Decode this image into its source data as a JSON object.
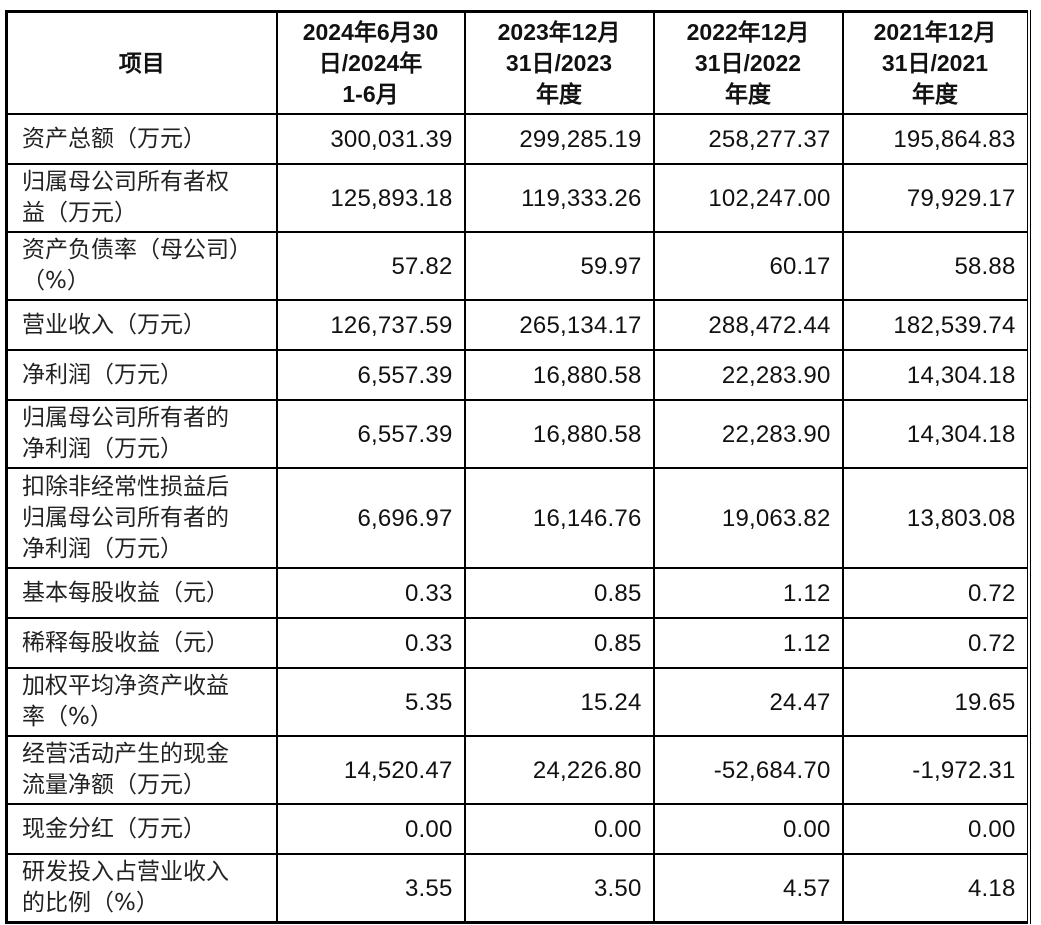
{
  "table": {
    "headers": [
      "项目",
      "2024年6月30日/2024年1-6月",
      "2023年12月31日/2023年度",
      "2022年12月31日/2022年度",
      "2021年12月31日/2021年度"
    ],
    "header_lines": [
      [
        "项目"
      ],
      [
        "2024年6月30",
        "日/2024年",
        "1-6月"
      ],
      [
        "2023年12月",
        "31日/2023",
        "年度"
      ],
      [
        "2022年12月",
        "31日/2022",
        "年度"
      ],
      [
        "2021年12月",
        "31日/2021",
        "年度"
      ]
    ],
    "rows": [
      {
        "label": "资产总额（万元）",
        "label_lines": [
          "资产总额（万元）"
        ],
        "values": [
          "300,031.39",
          "299,285.19",
          "258,277.37",
          "195,864.83"
        ]
      },
      {
        "label": "归属母公司所有者权益（万元）",
        "label_lines": [
          "归属母公司所有者权",
          "益（万元）"
        ],
        "values": [
          "125,893.18",
          "119,333.26",
          "102,247.00",
          "79,929.17"
        ]
      },
      {
        "label": "资产负债率（母公司）（%）",
        "label_lines": [
          "资产负债率（母公司）",
          "（%）"
        ],
        "values": [
          "57.82",
          "59.97",
          "60.17",
          "58.88"
        ]
      },
      {
        "label": "营业收入（万元）",
        "label_lines": [
          "营业收入（万元）"
        ],
        "values": [
          "126,737.59",
          "265,134.17",
          "288,472.44",
          "182,539.74"
        ]
      },
      {
        "label": "净利润（万元）",
        "label_lines": [
          "净利润（万元）"
        ],
        "values": [
          "6,557.39",
          "16,880.58",
          "22,283.90",
          "14,304.18"
        ]
      },
      {
        "label": "归属母公司所有者的净利润（万元）",
        "label_lines": [
          "归属母公司所有者的",
          "净利润（万元）"
        ],
        "values": [
          "6,557.39",
          "16,880.58",
          "22,283.90",
          "14,304.18"
        ]
      },
      {
        "label": "扣除非经常性损益后归属母公司所有者的净利润（万元）",
        "label_lines": [
          "扣除非经常性损益后",
          "归属母公司所有者的",
          "净利润（万元）"
        ],
        "values": [
          "6,696.97",
          "16,146.76",
          "19,063.82",
          "13,803.08"
        ]
      },
      {
        "label": "基本每股收益（元）",
        "label_lines": [
          "基本每股收益（元）"
        ],
        "values": [
          "0.33",
          "0.85",
          "1.12",
          "0.72"
        ]
      },
      {
        "label": "稀释每股收益（元）",
        "label_lines": [
          "稀释每股收益（元）"
        ],
        "values": [
          "0.33",
          "0.85",
          "1.12",
          "0.72"
        ]
      },
      {
        "label": "加权平均净资产收益率（%）",
        "label_lines": [
          "加权平均净资产收益",
          "率（%）"
        ],
        "values": [
          "5.35",
          "15.24",
          "24.47",
          "19.65"
        ]
      },
      {
        "label": "经营活动产生的现金流量净额（万元）",
        "label_lines": [
          "经营活动产生的现金",
          "流量净额（万元）"
        ],
        "values": [
          "14,520.47",
          "24,226.80",
          "-52,684.70",
          "-1,972.31"
        ]
      },
      {
        "label": "现金分红（万元）",
        "label_lines": [
          "现金分红（万元）"
        ],
        "values": [
          "0.00",
          "0.00",
          "0.00",
          "0.00"
        ]
      },
      {
        "label": "研发投入占营业收入的比例（%）",
        "label_lines": [
          "研发投入占营业收入",
          "的比例（%）"
        ],
        "values": [
          "3.55",
          "3.50",
          "4.57",
          "4.18"
        ]
      }
    ]
  }
}
